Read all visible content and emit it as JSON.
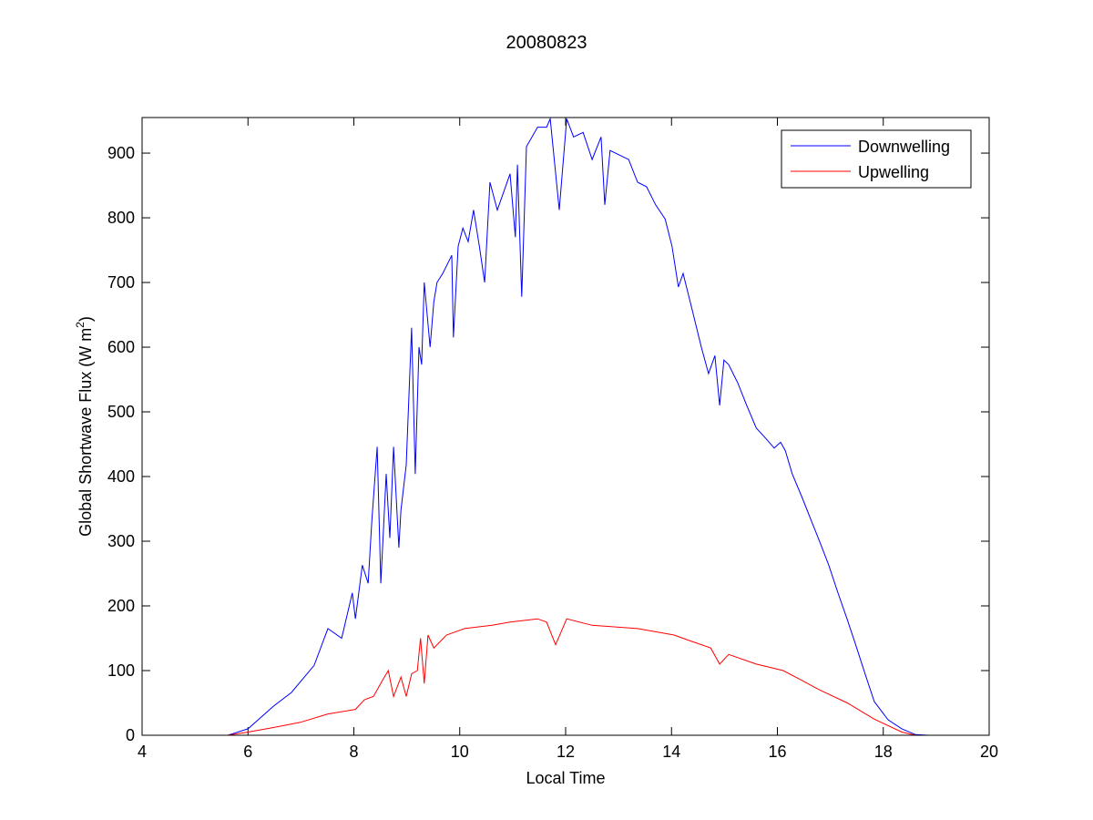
{
  "chart_data": {
    "type": "line",
    "title": "20080823",
    "xlabel": "Local Time",
    "ylabel": "Global Shortwave Flux (W m",
    "ylabel_sup": "2",
    "ylabel_close": ")",
    "xlim": [
      4,
      20
    ],
    "ylim": [
      0,
      955
    ],
    "xticks": [
      4,
      6,
      8,
      10,
      12,
      14,
      16,
      18,
      20
    ],
    "yticks": [
      0,
      100,
      200,
      300,
      400,
      500,
      600,
      700,
      800,
      900
    ],
    "grid": false,
    "legend_position": "top-right",
    "series": [
      {
        "name": "Downwelling",
        "color": "#0000ff",
        "x": [
          5.62,
          6.0,
          6.48,
          6.82,
          7.25,
          7.51,
          7.77,
          7.97,
          8.03,
          8.16,
          8.27,
          8.34,
          8.44,
          8.51,
          8.61,
          8.68,
          8.75,
          8.85,
          8.89,
          8.99,
          9.09,
          9.16,
          9.23,
          9.28,
          9.33,
          9.44,
          9.51,
          9.57,
          9.68,
          9.85,
          9.88,
          9.97,
          10.06,
          10.16,
          10.26,
          10.37,
          10.47,
          10.57,
          10.71,
          10.95,
          11.05,
          11.09,
          11.17,
          11.26,
          11.47,
          11.64,
          11.71,
          11.88,
          12.02,
          12.15,
          12.33,
          12.5,
          12.67,
          12.74,
          12.84,
          13.19,
          13.36,
          13.53,
          13.7,
          13.88,
          14.01,
          14.13,
          14.22,
          14.39,
          14.56,
          14.7,
          14.82,
          14.91,
          14.99,
          15.08,
          15.25,
          15.42,
          15.6,
          15.77,
          15.94,
          16.06,
          16.15,
          16.28,
          16.46,
          16.63,
          16.8,
          16.97,
          17.14,
          17.32,
          17.49,
          17.66,
          17.83,
          18.09,
          18.35,
          18.61,
          18.86
        ],
        "y": [
          0,
          10,
          45,
          66,
          108,
          165,
          150,
          220,
          180,
          263,
          235,
          333,
          446,
          235,
          404,
          305,
          446,
          290,
          348,
          418,
          630,
          404,
          600,
          573,
          700,
          600,
          670,
          700,
          714,
          742,
          615,
          756,
          784,
          763,
          812,
          756,
          700,
          855,
          812,
          868,
          770,
          882,
          678,
          910,
          940,
          940,
          953,
          812,
          953,
          925,
          932,
          890,
          925,
          820,
          904,
          890,
          855,
          848,
          820,
          798,
          756,
          693,
          714,
          658,
          601,
          559,
          587,
          510,
          580,
          573,
          545,
          510,
          475,
          460,
          444,
          453,
          440,
          404,
          369,
          334,
          299,
          263,
          221,
          179,
          137,
          94,
          52,
          24,
          10,
          1,
          0
        ]
      },
      {
        "name": "Upwelling",
        "color": "#ff0000",
        "x": [
          5.62,
          6.0,
          6.48,
          6.99,
          7.51,
          8.03,
          8.2,
          8.37,
          8.54,
          8.65,
          8.75,
          8.89,
          8.99,
          9.09,
          9.2,
          9.26,
          9.33,
          9.4,
          9.51,
          9.75,
          10.09,
          10.61,
          10.95,
          11.47,
          11.64,
          11.81,
          12.02,
          12.5,
          13.36,
          14.05,
          14.39,
          14.74,
          14.91,
          15.08,
          15.6,
          16.11,
          16.46,
          16.8,
          17.32,
          17.83,
          18.35,
          18.61
        ],
        "y": [
          0,
          5,
          12,
          20,
          33,
          40,
          55,
          60,
          85,
          100,
          60,
          90,
          60,
          95,
          100,
          150,
          80,
          155,
          135,
          155,
          165,
          170,
          175,
          180,
          175,
          140,
          180,
          170,
          165,
          155,
          145,
          135,
          110,
          125,
          110,
          100,
          85,
          70,
          50,
          25,
          5,
          0
        ]
      }
    ]
  }
}
